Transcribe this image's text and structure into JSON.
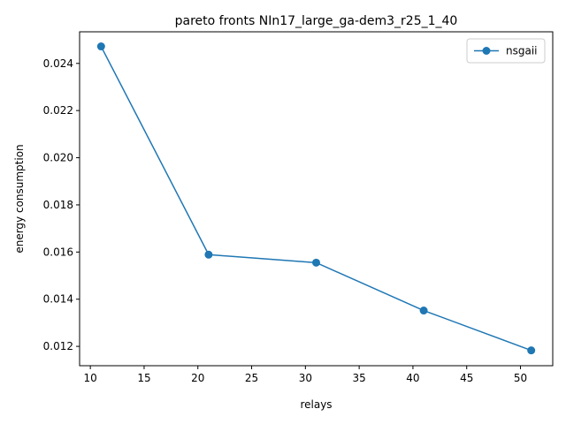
{
  "chart_data": {
    "type": "line",
    "title": "pareto fronts NIn17_large_ga-dem3_r25_1_40",
    "xlabel": "relays",
    "ylabel": "energy consumption",
    "xlim": [
      9,
      53
    ],
    "ylim": [
      0.01118,
      0.02534
    ],
    "xticks": [
      10,
      15,
      20,
      25,
      30,
      35,
      40,
      45,
      50
    ],
    "yticks": [
      0.012,
      0.014,
      0.016,
      0.018,
      0.02,
      0.022,
      0.024
    ],
    "xtick_labels": [
      "10",
      "15",
      "20",
      "25",
      "30",
      "35",
      "40",
      "45",
      "50"
    ],
    "ytick_labels": [
      "0.012",
      "0.014",
      "0.016",
      "0.018",
      "0.020",
      "0.022",
      "0.024"
    ],
    "legend_position": "top-right",
    "grid": false,
    "series": [
      {
        "name": "nsgaii",
        "color": "#1f77b4",
        "marker": "circle",
        "x": [
          11,
          21,
          31,
          41,
          51
        ],
        "y": [
          0.02472,
          0.01589,
          0.01555,
          0.01352,
          0.01183
        ]
      }
    ]
  }
}
